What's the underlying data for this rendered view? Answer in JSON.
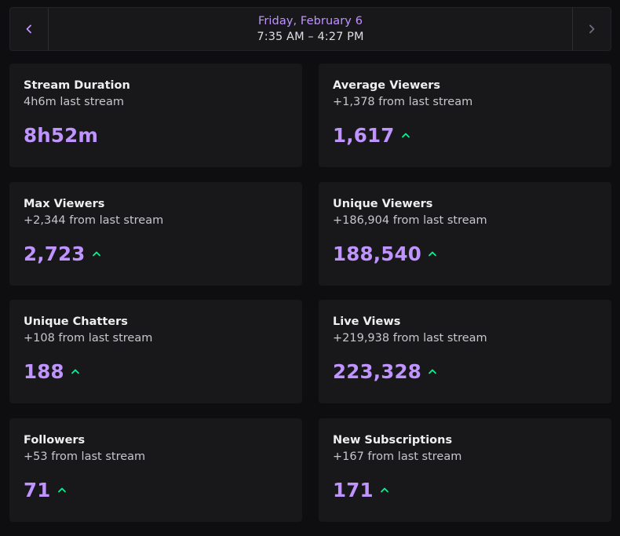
{
  "header": {
    "date": "Friday, February 6",
    "time_range": "7:35 AM – 4:27 PM"
  },
  "colors": {
    "accent": "#bf94ff",
    "positive": "#00f593",
    "card_bg": "#18181b",
    "page_bg": "#0e0e10"
  },
  "icons": {
    "prev": "chevron-left-icon",
    "next": "chevron-right-icon",
    "trend": "chevron-up-icon"
  },
  "stats": [
    {
      "title": "Stream Duration",
      "subtitle": "4h6m last stream",
      "value": "8h52m",
      "trend": "none"
    },
    {
      "title": "Average Viewers",
      "subtitle": "+1,378 from last stream",
      "value": "1,617",
      "trend": "up"
    },
    {
      "title": "Max Viewers",
      "subtitle": "+2,344 from last stream",
      "value": "2,723",
      "trend": "up"
    },
    {
      "title": "Unique Viewers",
      "subtitle": "+186,904 from last stream",
      "value": "188,540",
      "trend": "up"
    },
    {
      "title": "Unique Chatters",
      "subtitle": "+108 from last stream",
      "value": "188",
      "trend": "up"
    },
    {
      "title": "Live Views",
      "subtitle": "+219,938 from last stream",
      "value": "223,328",
      "trend": "up"
    },
    {
      "title": "Followers",
      "subtitle": "+53 from last stream",
      "value": "71",
      "trend": "up"
    },
    {
      "title": "New Subscriptions",
      "subtitle": "+167 from last stream",
      "value": "171",
      "trend": "up"
    }
  ]
}
